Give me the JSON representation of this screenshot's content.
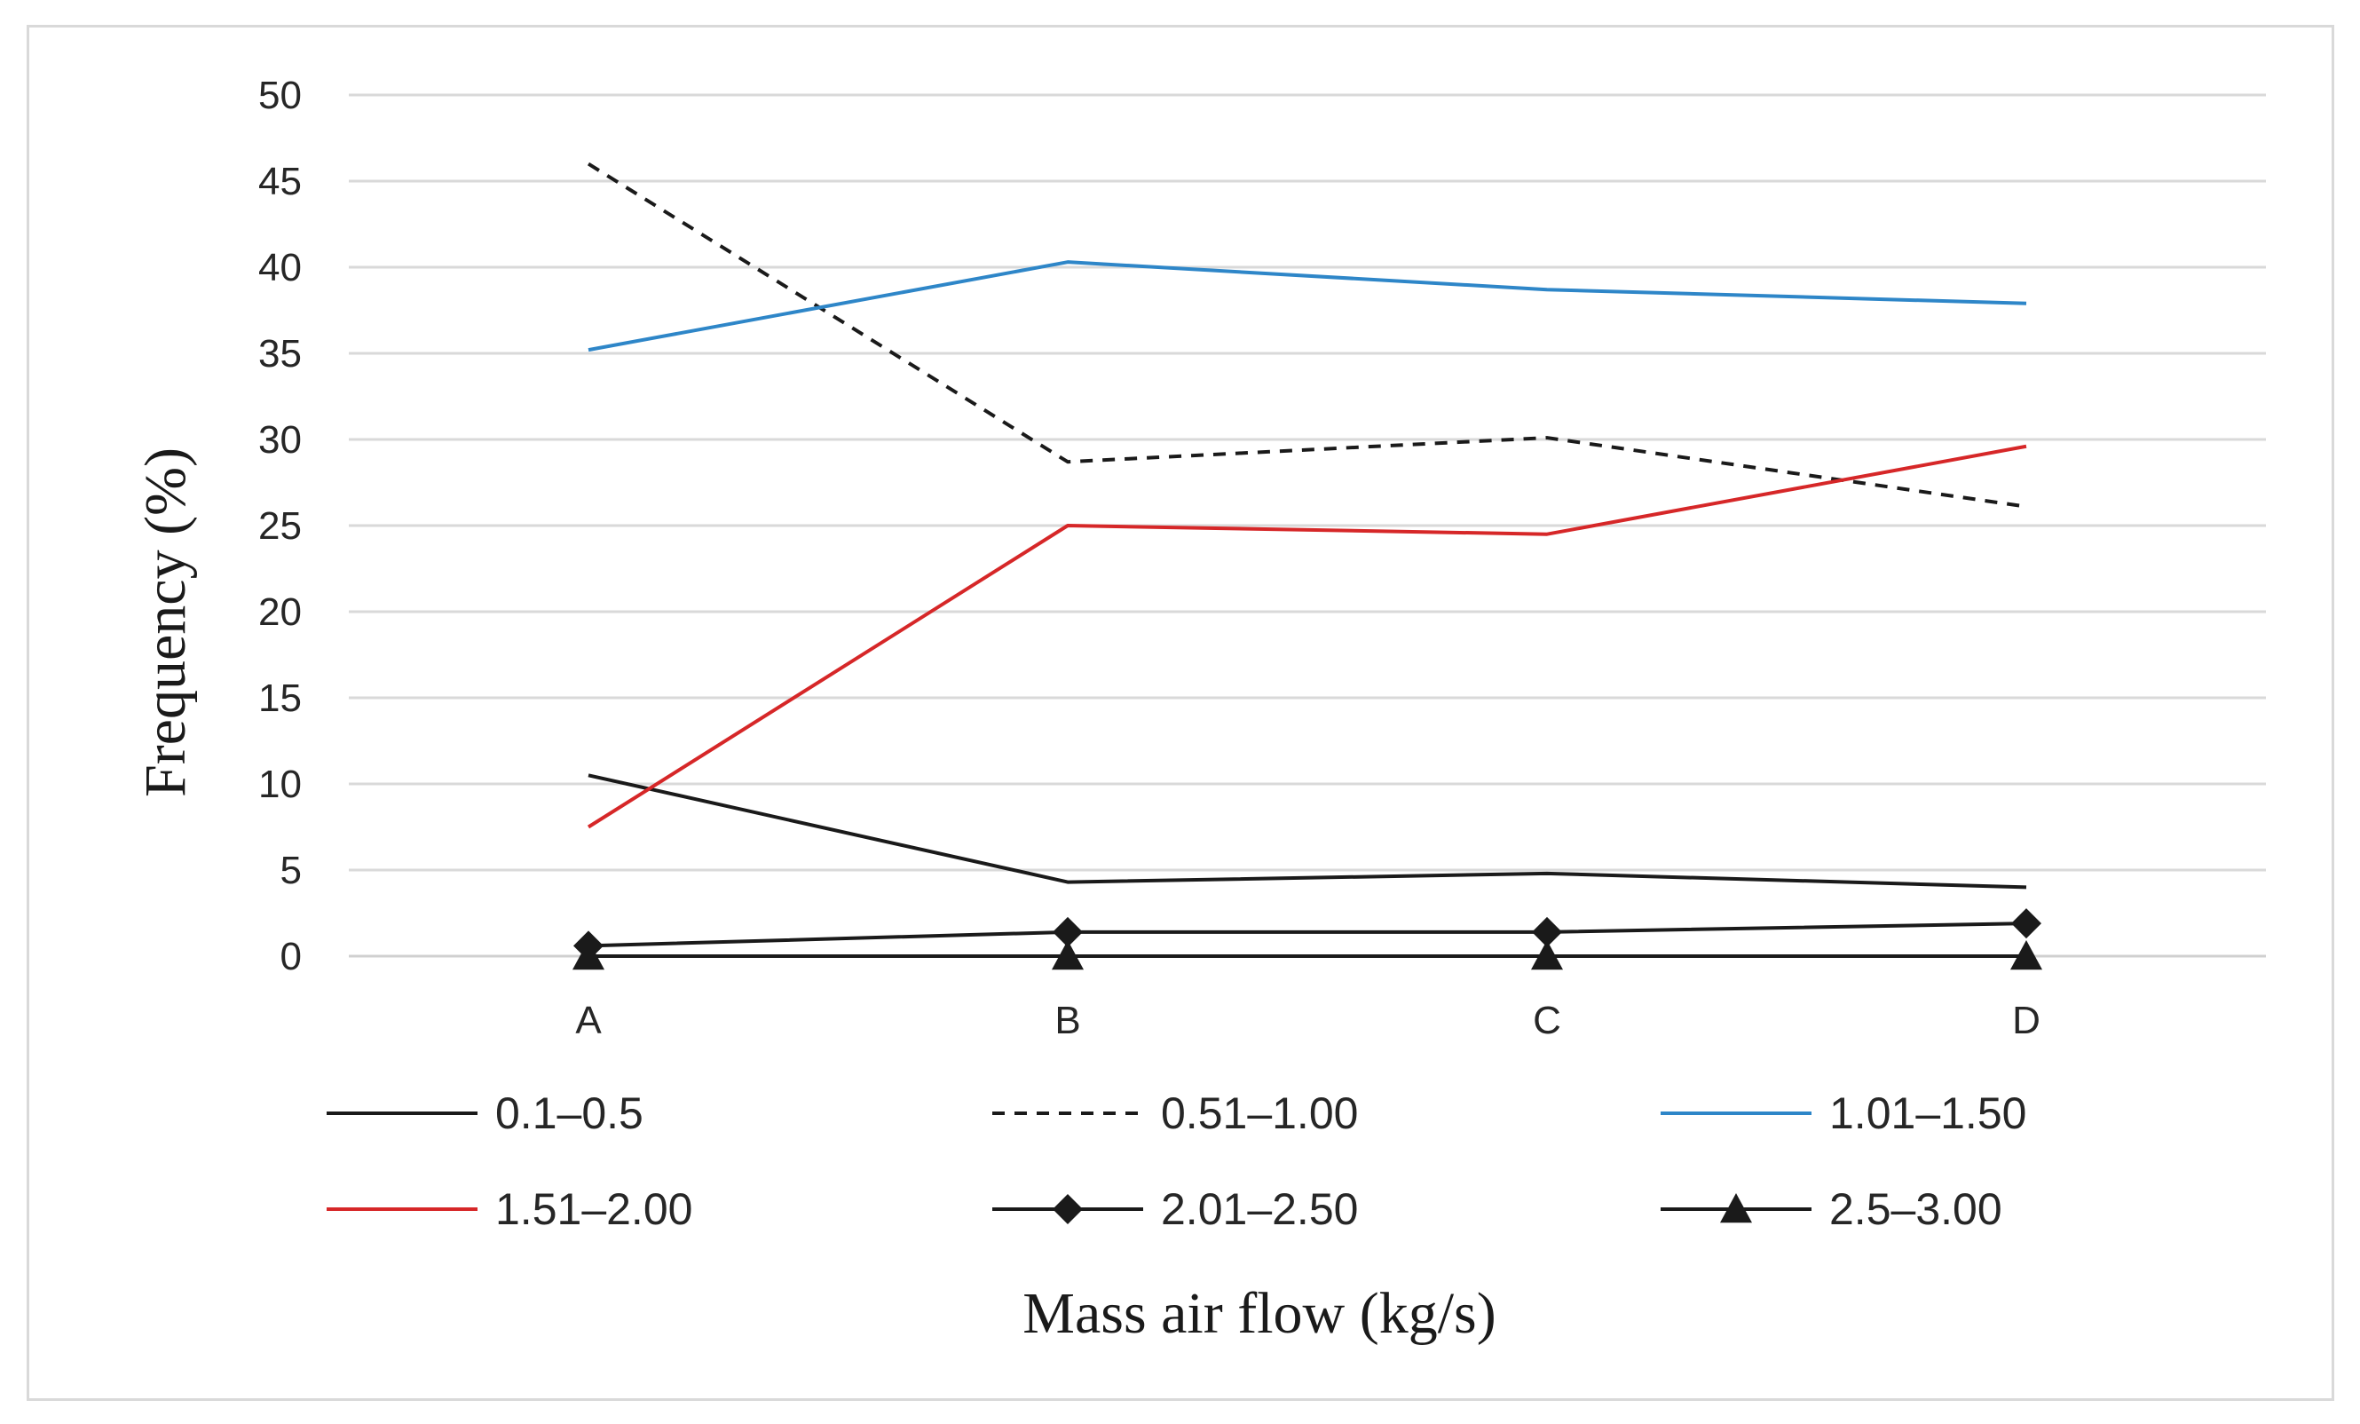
{
  "chart_data": {
    "type": "line",
    "title": "",
    "xlabel": "Mass air flow (kg/s)",
    "ylabel": "Frequency (%)",
    "categories": [
      "A",
      "B",
      "C",
      "D"
    ],
    "ylim": [
      0,
      50
    ],
    "yticks": [
      0,
      5,
      10,
      15,
      20,
      25,
      30,
      35,
      40,
      45,
      50
    ],
    "grid": true,
    "legend_position": "bottom",
    "series": [
      {
        "name": "0.1–0.5",
        "values": [
          10.5,
          4.3,
          4.8,
          4.0
        ],
        "color": "#1a1a1a",
        "dash": "solid",
        "marker": "none"
      },
      {
        "name": "0.51–1.00",
        "values": [
          46.0,
          28.7,
          30.1,
          26.1
        ],
        "color": "#1a1a1a",
        "dash": "dashed",
        "marker": "none"
      },
      {
        "name": "1.01–1.50",
        "values": [
          35.2,
          40.3,
          38.7,
          37.9
        ],
        "color": "#2e86c8",
        "dash": "solid",
        "marker": "none"
      },
      {
        "name": "1.51–2.00",
        "values": [
          7.5,
          25.0,
          24.5,
          29.6
        ],
        "color": "#d62728",
        "dash": "solid",
        "marker": "none"
      },
      {
        "name": "2.01–2.50",
        "values": [
          0.6,
          1.4,
          1.4,
          1.9
        ],
        "color": "#1a1a1a",
        "dash": "solid",
        "marker": "diamond"
      },
      {
        "name": "2.5–3.00",
        "values": [
          0.0,
          0.0,
          0.0,
          0.0
        ],
        "color": "#1a1a1a",
        "dash": "solid",
        "marker": "triangle"
      }
    ]
  }
}
